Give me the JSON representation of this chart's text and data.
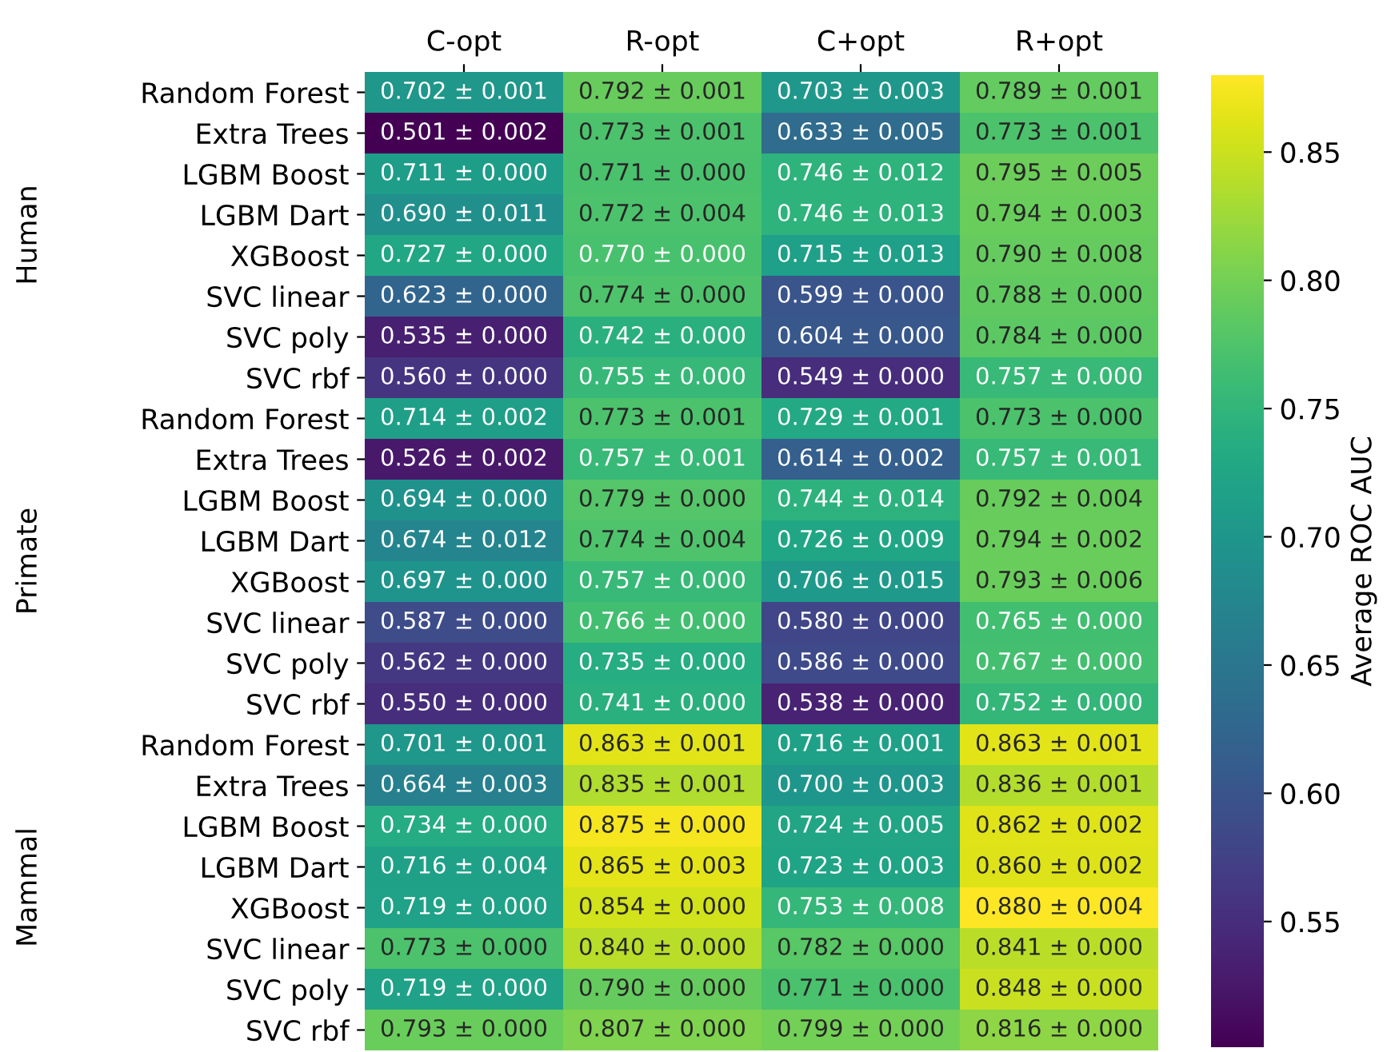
{
  "chart_data": {
    "type": "heatmap",
    "categories": [
      "C-opt",
      "R-opt",
      "C+opt",
      "R+opt"
    ],
    "y_categories": [
      "Random Forest",
      "Extra Trees",
      "LGBM Boost",
      "LGBM Dart",
      "XGBoost",
      "SVC linear",
      "SVC poly",
      "SVC rbf",
      "Random Forest",
      "Extra Trees",
      "LGBM Boost",
      "LGBM Dart",
      "XGBoost",
      "SVC linear",
      "SVC poly",
      "SVC rbf",
      "Random Forest",
      "Extra Trees",
      "LGBM Boost",
      "LGBM Dart",
      "XGBoost",
      "SVC linear",
      "SVC poly",
      "SVC rbf"
    ],
    "cells": [
      [
        0.702,
        0.792,
        0.703,
        0.789
      ],
      [
        0.501,
        0.773,
        0.633,
        0.773
      ],
      [
        0.711,
        0.771,
        0.746,
        0.795
      ],
      [
        0.69,
        0.772,
        0.746,
        0.794
      ],
      [
        0.727,
        0.77,
        0.715,
        0.79
      ],
      [
        0.623,
        0.774,
        0.599,
        0.788
      ],
      [
        0.535,
        0.742,
        0.604,
        0.784
      ],
      [
        0.56,
        0.755,
        0.549,
        0.757
      ],
      [
        0.714,
        0.773,
        0.729,
        0.773
      ],
      [
        0.526,
        0.757,
        0.614,
        0.757
      ],
      [
        0.694,
        0.779,
        0.744,
        0.792
      ],
      [
        0.674,
        0.774,
        0.726,
        0.794
      ],
      [
        0.697,
        0.757,
        0.706,
        0.793
      ],
      [
        0.587,
        0.766,
        0.58,
        0.765
      ],
      [
        0.562,
        0.735,
        0.586,
        0.767
      ],
      [
        0.55,
        0.741,
        0.538,
        0.752
      ],
      [
        0.701,
        0.863,
        0.716,
        0.863
      ],
      [
        0.664,
        0.835,
        0.7,
        0.836
      ],
      [
        0.734,
        0.875,
        0.724,
        0.862
      ],
      [
        0.716,
        0.865,
        0.723,
        0.86
      ],
      [
        0.719,
        0.854,
        0.753,
        0.88
      ],
      [
        0.773,
        0.84,
        0.782,
        0.841
      ],
      [
        0.719,
        0.79,
        0.771,
        0.848
      ],
      [
        0.793,
        0.807,
        0.799,
        0.816
      ]
    ],
    "cell_labels": [
      [
        "0.702 ± 0.001",
        "0.792 ± 0.001",
        "0.703 ± 0.003",
        "0.789 ± 0.001"
      ],
      [
        "0.501 ± 0.002",
        "0.773 ± 0.001",
        "0.633 ± 0.005",
        "0.773 ± 0.001"
      ],
      [
        "0.711 ± 0.000",
        "0.771 ± 0.000",
        "0.746 ± 0.012",
        "0.795 ± 0.005"
      ],
      [
        "0.690 ± 0.011",
        "0.772 ± 0.004",
        "0.746 ± 0.013",
        "0.794 ± 0.003"
      ],
      [
        "0.727 ± 0.000",
        "0.770 ± 0.000",
        "0.715 ± 0.013",
        "0.790 ± 0.008"
      ],
      [
        "0.623 ± 0.000",
        "0.774 ± 0.000",
        "0.599 ± 0.000",
        "0.788 ± 0.000"
      ],
      [
        "0.535 ± 0.000",
        "0.742 ± 0.000",
        "0.604 ± 0.000",
        "0.784 ± 0.000"
      ],
      [
        "0.560 ± 0.000",
        "0.755 ± 0.000",
        "0.549 ± 0.000",
        "0.757 ± 0.000"
      ],
      [
        "0.714 ± 0.002",
        "0.773 ± 0.001",
        "0.729 ± 0.001",
        "0.773 ± 0.000"
      ],
      [
        "0.526 ± 0.002",
        "0.757 ± 0.001",
        "0.614 ± 0.002",
        "0.757 ± 0.001"
      ],
      [
        "0.694 ± 0.000",
        "0.779 ± 0.000",
        "0.744 ± 0.014",
        "0.792 ± 0.004"
      ],
      [
        "0.674 ± 0.012",
        "0.774 ± 0.004",
        "0.726 ± 0.009",
        "0.794 ± 0.002"
      ],
      [
        "0.697 ± 0.000",
        "0.757 ± 0.000",
        "0.706 ± 0.015",
        "0.793 ± 0.006"
      ],
      [
        "0.587 ± 0.000",
        "0.766 ± 0.000",
        "0.580 ± 0.000",
        "0.765 ± 0.000"
      ],
      [
        "0.562 ± 0.000",
        "0.735 ± 0.000",
        "0.586 ± 0.000",
        "0.767 ± 0.000"
      ],
      [
        "0.550 ± 0.000",
        "0.741 ± 0.000",
        "0.538 ± 0.000",
        "0.752 ± 0.000"
      ],
      [
        "0.701 ± 0.001",
        "0.863 ± 0.001",
        "0.716 ± 0.001",
        "0.863 ± 0.001"
      ],
      [
        "0.664 ± 0.003",
        "0.835 ± 0.001",
        "0.700 ± 0.003",
        "0.836 ± 0.001"
      ],
      [
        "0.734 ± 0.000",
        "0.875 ± 0.000",
        "0.724 ± 0.005",
        "0.862 ± 0.002"
      ],
      [
        "0.716 ± 0.004",
        "0.865 ± 0.003",
        "0.723 ± 0.003",
        "0.860 ± 0.002"
      ],
      [
        "0.719 ± 0.000",
        "0.854 ± 0.000",
        "0.753 ± 0.008",
        "0.880 ± 0.004"
      ],
      [
        "0.773 ± 0.000",
        "0.840 ± 0.000",
        "0.782 ± 0.000",
        "0.841 ± 0.000"
      ],
      [
        "0.719 ± 0.000",
        "0.790 ± 0.000",
        "0.771 ± 0.000",
        "0.848 ± 0.000"
      ],
      [
        "0.793 ± 0.000",
        "0.807 ± 0.000",
        "0.799 ± 0.000",
        "0.816 ± 0.000"
      ]
    ],
    "clim": [
      0.501,
      0.88
    ],
    "cticks": [
      0.55,
      {
        "value": 0.6,
        "label": "0.60"
      },
      0.65,
      {
        "value": 0.7,
        "label": "0.70"
      },
      0.75,
      {
        "value": 0.8,
        "label": "0.80"
      },
      0.85
    ],
    "clabel": "Average ROC AUC",
    "annotations": [
      "Human",
      "Primate",
      "Mammal"
    ]
  }
}
